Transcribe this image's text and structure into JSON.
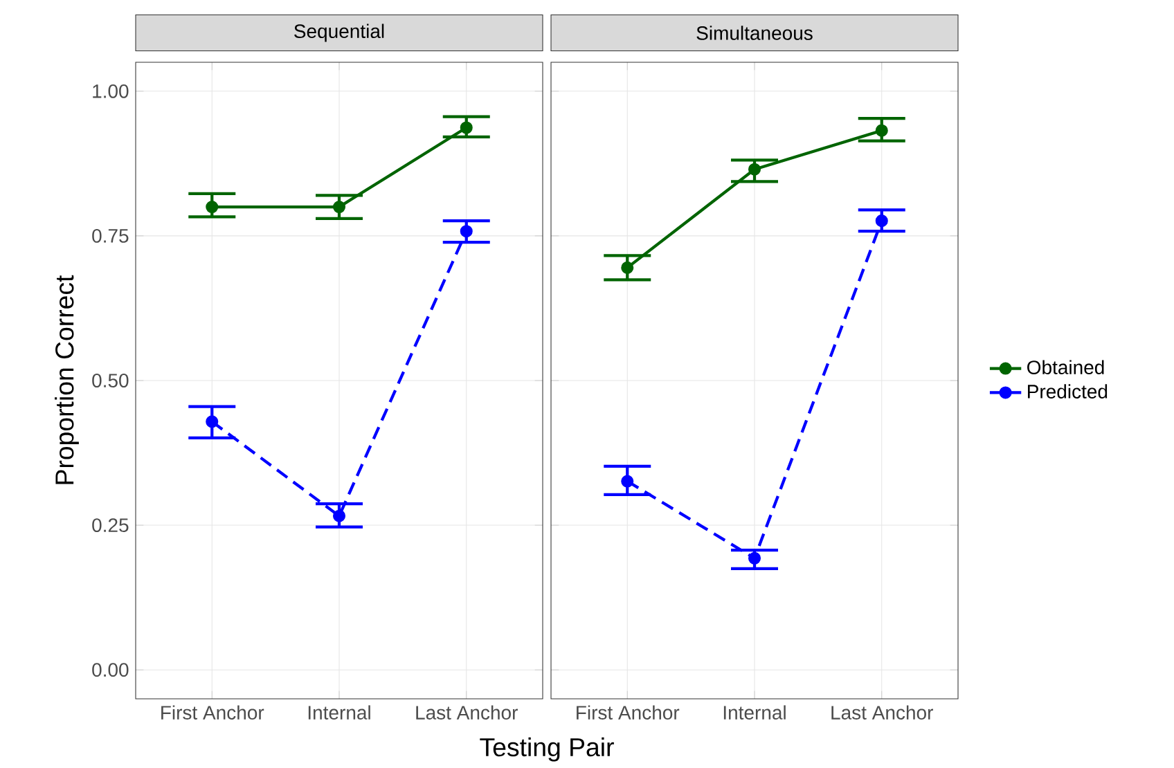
{
  "chart_data": [
    {
      "type": "line",
      "title": "Sequential",
      "xlabel": "Testing Pair",
      "ylabel": "Proportion Correct",
      "categories": [
        "First Anchor",
        "Internal",
        "Last Anchor"
      ],
      "ylim": [
        -0.05,
        1.05
      ],
      "yticks": [
        {
          "value": 0,
          "label": "0.00"
        },
        {
          "value": 0.25,
          "label": "0.25"
        },
        {
          "value": 0.5,
          "label": "0.50"
        },
        {
          "value": 0.75,
          "label": "0.75"
        },
        {
          "value": 1,
          "label": "1.00"
        }
      ],
      "grid": true,
      "legend": false,
      "marker": "circle",
      "series": [
        {
          "color": "#006400",
          "line_style": "solid",
          "values": [
            0.8,
            0.8,
            0.937
          ],
          "errors": [
            [
              0.783,
              0.823
            ],
            [
              0.78,
              0.82
            ],
            [
              0.921,
              0.956
            ]
          ]
        },
        {
          "color": "#0000ff",
          "line_style": "dashed",
          "values": [
            0.429,
            0.266,
            0.758
          ],
          "errors": [
            [
              0.401,
              0.455
            ],
            [
              0.247,
              0.287
            ],
            [
              0.739,
              0.776
            ]
          ]
        }
      ]
    },
    {
      "type": "line",
      "title": "Simultaneous",
      "categories": [
        "First Anchor",
        "Internal",
        "Last Anchor"
      ],
      "ylim": [
        -0.05,
        1.05
      ],
      "yticks": [
        {
          "value": 0,
          "label": null
        },
        {
          "value": 0.25,
          "label": null
        },
        {
          "value": 0.5,
          "label": null
        },
        {
          "value": 0.75,
          "label": null
        },
        {
          "value": 1,
          "label": null
        }
      ],
      "tick_labels": "x",
      "grid": true,
      "legend": "right",
      "marker": "circle",
      "series": [
        {
          "name": "Obtained",
          "color": "#006400",
          "line_style": "solid",
          "values": [
            0.695,
            0.865,
            0.932
          ],
          "errors": [
            [
              0.674,
              0.716
            ],
            [
              0.844,
              0.881
            ],
            [
              0.914,
              0.953
            ]
          ]
        },
        {
          "name": "Predicted",
          "color": "#0000ff",
          "line_style": "dashed",
          "values": [
            0.326,
            0.193,
            0.776
          ],
          "errors": [
            [
              0.303,
              0.352
            ],
            [
              0.175,
              0.207
            ],
            [
              0.758,
              0.795
            ]
          ]
        }
      ]
    }
  ]
}
